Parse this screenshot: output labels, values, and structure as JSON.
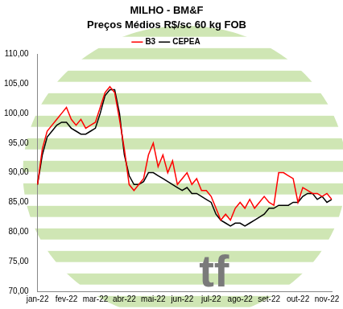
{
  "chart_data": {
    "type": "line",
    "title": "MILHO - BM&F",
    "subtitle": "Preços Médios R$/sc 60 kg FOB",
    "annotation": "tf",
    "categories": [
      "jan-22",
      null,
      null,
      null,
      null,
      null,
      "fev-22",
      null,
      null,
      null,
      null,
      null,
      "mar-22",
      null,
      null,
      null,
      null,
      null,
      "abr-22",
      null,
      null,
      null,
      null,
      null,
      "mai-22",
      null,
      null,
      null,
      null,
      null,
      "jun-22",
      null,
      null,
      null,
      null,
      null,
      "jul-22",
      null,
      null,
      null,
      null,
      null,
      "ago-22",
      null,
      null,
      null,
      null,
      null,
      "set-22",
      null,
      null,
      null,
      null,
      null,
      "out-22",
      null,
      null,
      null,
      null,
      null,
      "nov-22",
      null
    ],
    "series": [
      {
        "name": "B3",
        "color": "#ff0000",
        "values": [
          88,
          94,
          97,
          98,
          99,
          100,
          101,
          99,
          98,
          99,
          97.5,
          98,
          98.5,
          101,
          103.5,
          104.5,
          103.5,
          99,
          94,
          88,
          87,
          88,
          89,
          93,
          95,
          91,
          93,
          90,
          92,
          88,
          89,
          90,
          88,
          89,
          87,
          87,
          86,
          84,
          82,
          83,
          82,
          84,
          85,
          84,
          85.5,
          84,
          85,
          86,
          85,
          84.5,
          90,
          90,
          89.5,
          89,
          85,
          87.5,
          87,
          86.5,
          86.5,
          86,
          86.5,
          85.5
        ]
      },
      {
        "name": "CEPEA",
        "color": "#000000",
        "values": [
          88,
          93,
          96,
          97,
          98,
          98.5,
          98.5,
          97.5,
          97,
          96.5,
          96.5,
          97,
          97.5,
          100,
          103,
          104,
          104,
          100,
          93,
          89.5,
          88,
          88,
          88.5,
          90,
          90,
          89.5,
          89,
          88.5,
          88,
          87.5,
          87,
          87.5,
          86.5,
          86.5,
          86,
          85.5,
          85,
          83,
          82,
          81.5,
          81,
          81.5,
          81.5,
          81,
          81.5,
          82,
          82.5,
          83,
          84,
          84,
          84.5,
          84.5,
          84.5,
          85,
          85,
          86,
          86.5,
          86.5,
          85.5,
          86,
          85,
          85.5
        ]
      }
    ],
    "ylim": [
      70,
      110
    ],
    "yticks": [
      {
        "value": 70,
        "label": "70,00"
      },
      {
        "value": 75,
        "label": "75,00"
      },
      {
        "value": 80,
        "label": "80,00"
      },
      {
        "value": 85,
        "label": "85,00"
      },
      {
        "value": 90,
        "label": "90,00"
      },
      {
        "value": 95,
        "label": "95,00"
      },
      {
        "value": 100,
        "label": "100,00"
      },
      {
        "value": 105,
        "label": "105,00"
      },
      {
        "value": 110,
        "label": "110,00"
      }
    ],
    "grid": false,
    "legend": "top"
  }
}
